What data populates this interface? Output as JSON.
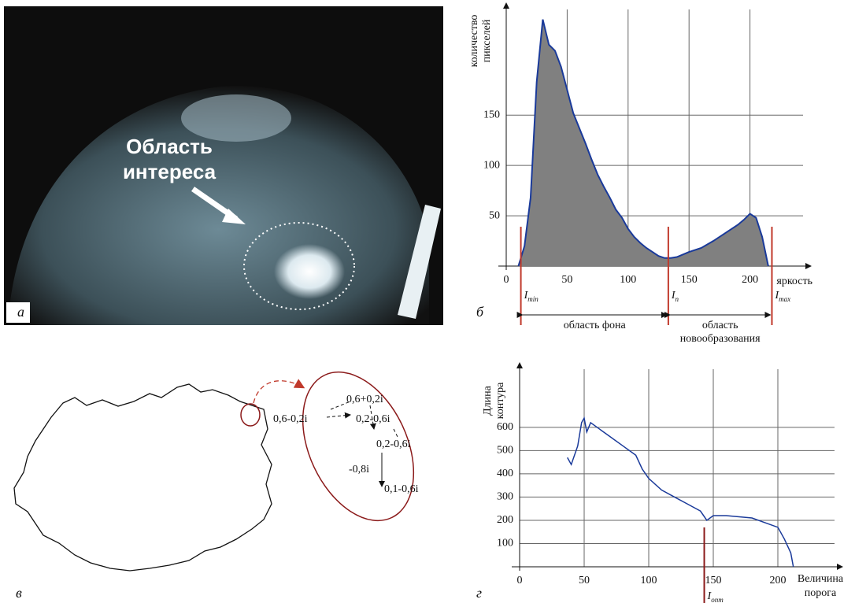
{
  "panel_labels": [
    "а",
    "б",
    "в",
    "г"
  ],
  "image_panel": {
    "annotation": [
      "Область",
      "интереса"
    ]
  },
  "diagram": {
    "labels": [
      "0,6+0,2i",
      "0,6-0,2i",
      "0,2-0,6i",
      "0,2-0,6i",
      "-0,8i",
      "0,1-0,6i"
    ]
  },
  "chart_data": [
    {
      "type": "area",
      "y_label": [
        "количество",
        "пикселей"
      ],
      "x_label": "яркость",
      "color": "#808080",
      "line_color": "#1a3a9a",
      "x": [
        10,
        15,
        20,
        25,
        30,
        35,
        40,
        45,
        50,
        55,
        60,
        65,
        70,
        75,
        80,
        85,
        90,
        95,
        100,
        105,
        110,
        115,
        120,
        125,
        130,
        135,
        140,
        150,
        160,
        170,
        180,
        190,
        195,
        200,
        205,
        210,
        215
      ],
      "values": [
        0,
        20,
        68,
        183,
        245,
        220,
        214,
        198,
        175,
        152,
        137,
        122,
        106,
        91,
        79,
        68,
        56,
        48,
        37,
        29,
        23,
        18,
        14,
        10,
        8,
        8,
        9,
        14,
        18,
        25,
        33,
        41,
        46,
        52,
        48,
        29,
        0
      ],
      "xlim": [
        0,
        250
      ],
      "ylim": [
        0,
        255
      ],
      "xticks": [
        0,
        50,
        100,
        150,
        200
      ],
      "yticks": [
        50,
        100,
        150
      ],
      "grid": true,
      "markers": [
        {
          "x": 12,
          "label": "I",
          "subscript": "min"
        },
        {
          "x": 133,
          "label": "I",
          "subscript": "п"
        },
        {
          "x": 218,
          "label": "I",
          "subscript": "max"
        }
      ],
      "ranges": [
        {
          "from": 0,
          "to": 1,
          "label": [
            "область фона"
          ]
        },
        {
          "from": 1,
          "to": 2,
          "label": [
            "область",
            "новообразования"
          ]
        }
      ]
    },
    {
      "type": "line",
      "y_label": [
        "Длина",
        "контура"
      ],
      "x_label": [
        "Величина",
        "порога"
      ],
      "color": "#1a3a9a",
      "x": [
        37,
        40,
        45,
        48,
        50,
        52,
        55,
        60,
        70,
        80,
        90,
        95,
        100,
        110,
        120,
        130,
        140,
        145,
        150,
        160,
        170,
        180,
        190,
        200,
        205,
        210,
        212
      ],
      "values": [
        470,
        440,
        520,
        620,
        640,
        580,
        620,
        600,
        560,
        520,
        480,
        420,
        380,
        330,
        300,
        270,
        240,
        200,
        220,
        220,
        215,
        210,
        190,
        170,
        120,
        60,
        0
      ],
      "xlim": [
        0,
        250
      ],
      "ylim": [
        0,
        850
      ],
      "xticks": [
        0,
        50,
        100,
        150,
        200
      ],
      "yticks": [
        100,
        200,
        300,
        400,
        500,
        600
      ],
      "grid": true,
      "markers": [
        {
          "x": 143,
          "label": "I",
          "subscript": "опт"
        }
      ],
      "ranges": []
    }
  ]
}
